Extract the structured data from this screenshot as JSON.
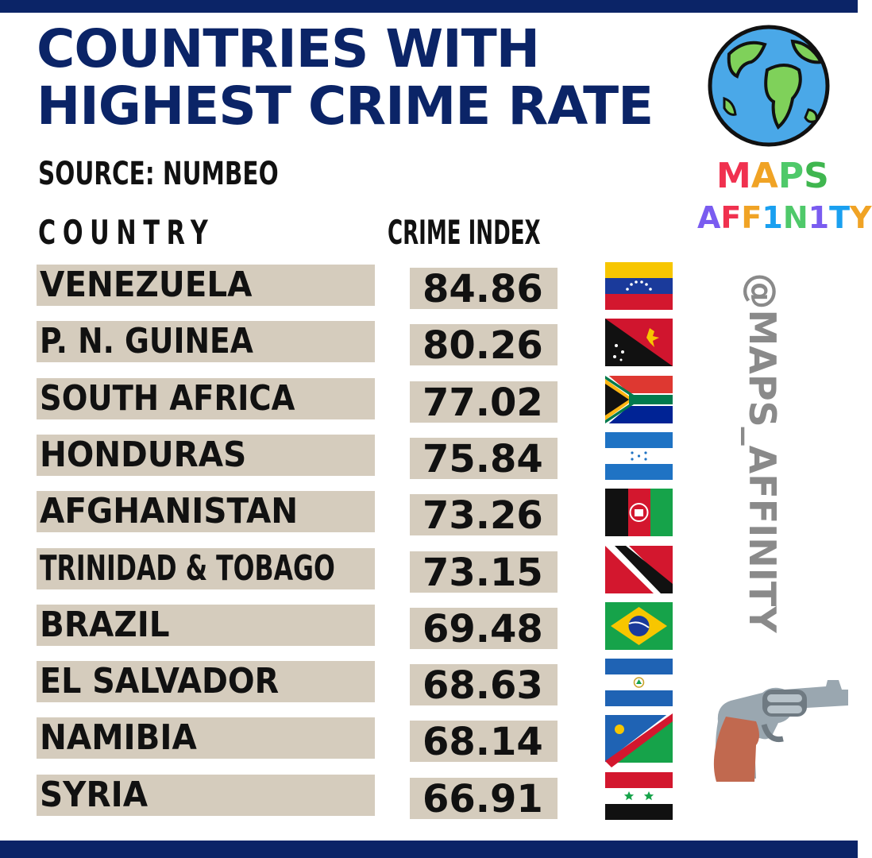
{
  "title_line1": "COUNTRIES WITH",
  "title_line2": "HIGHEST CRIME RATE",
  "source": "SOURCE: NUMBEO",
  "brand_line1": "MAPS",
  "brand_line2": "AFF1N1TY",
  "handle": "@MAPS_AFFINITY",
  "colors": {
    "navy": "#0b2467",
    "row_bg": "#d5ccbd",
    "handle": "#8a8a8a"
  },
  "icons": {
    "globe": "globe-icon",
    "gun": "revolver-icon"
  },
  "chart_data": {
    "type": "table",
    "columns": [
      "COUNTRY",
      "CRIME INDEX"
    ],
    "rows": [
      {
        "country": "VENEZUELA",
        "value": "84.86",
        "flag": "venezuela-flag-icon"
      },
      {
        "country": "P. N. GUINEA",
        "value": "80.26",
        "flag": "papua-new-guinea-flag-icon"
      },
      {
        "country": "SOUTH AFRICA",
        "value": "77.02",
        "flag": "south-africa-flag-icon"
      },
      {
        "country": "HONDURAS",
        "value": "75.84",
        "flag": "honduras-flag-icon"
      },
      {
        "country": "AFGHANISTAN",
        "value": "73.26",
        "flag": "afghanistan-flag-icon"
      },
      {
        "country": "TRINIDAD & TOBAGO",
        "value": "73.15",
        "flag": "trinidad-and-tobago-flag-icon"
      },
      {
        "country": "BRAZIL",
        "value": "69.48",
        "flag": "brazil-flag-icon"
      },
      {
        "country": "EL SALVADOR",
        "value": "68.63",
        "flag": "el-salvador-flag-icon"
      },
      {
        "country": "NAMIBIA",
        "value": "68.14",
        "flag": "namibia-flag-icon"
      },
      {
        "country": "SYRIA",
        "value": "66.91",
        "flag": "syria-flag-icon"
      }
    ]
  }
}
